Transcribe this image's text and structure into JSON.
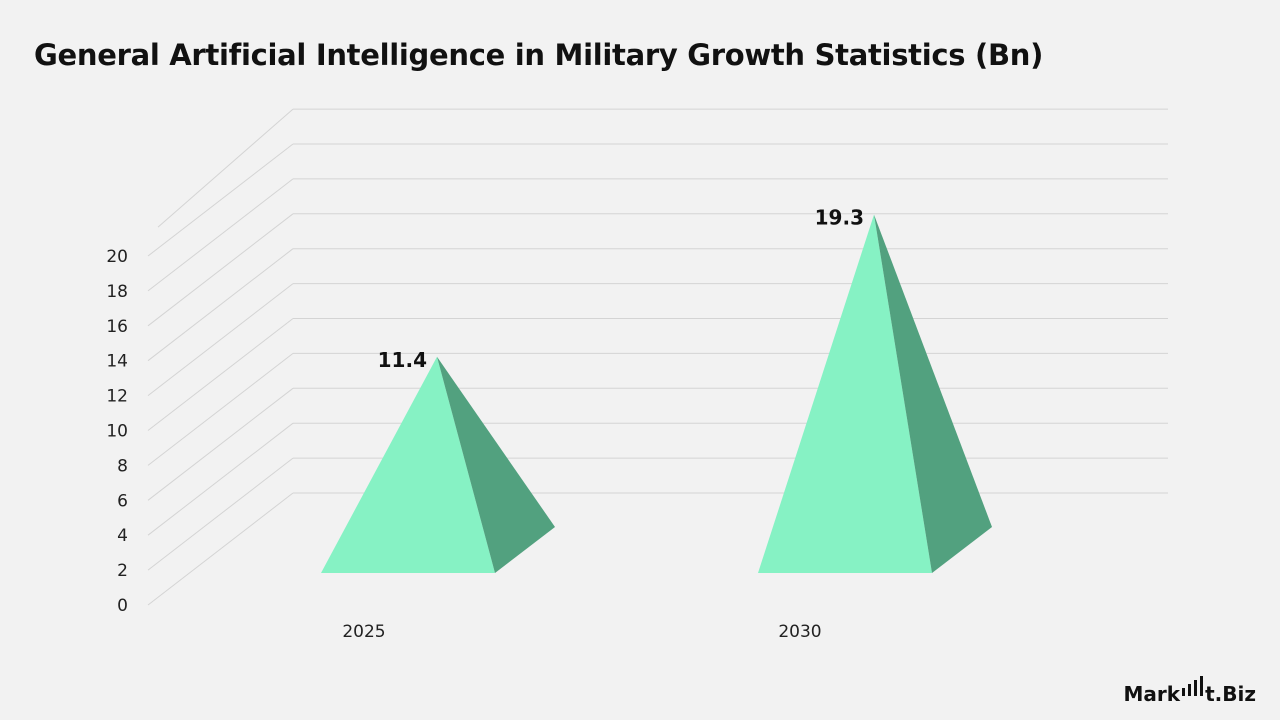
{
  "chart_data": {
    "type": "bar",
    "title": "General Artificial Intelligence in Military Growth Statistics (Bn)",
    "categories": [
      "2025",
      "2030"
    ],
    "values": [
      11.4,
      19.3
    ],
    "data_labels": [
      "11.4",
      "19.3"
    ],
    "ylim": [
      0,
      20
    ],
    "yticks": [
      0,
      2,
      4,
      6,
      8,
      10,
      12,
      14,
      16,
      18,
      20
    ],
    "grid": true,
    "colors": {
      "face": "#86f2c4",
      "side": "#52a17f"
    }
  },
  "brand": {
    "logo_text": "Market.Biz"
  }
}
